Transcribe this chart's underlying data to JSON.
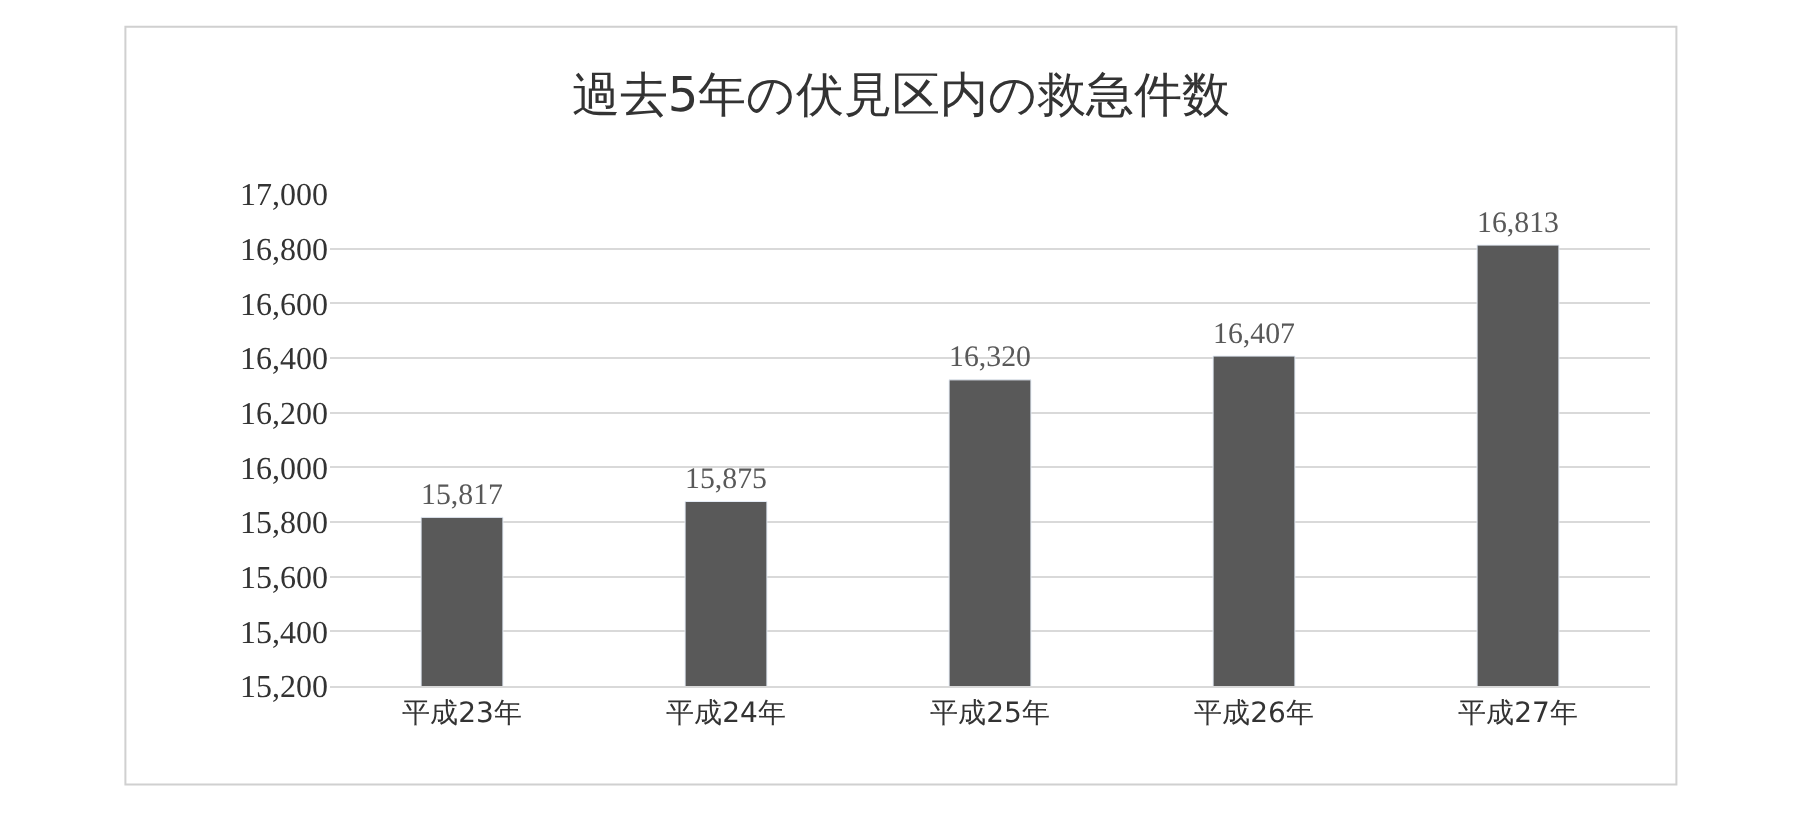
{
  "chart_data": {
    "type": "bar",
    "title": "過去5年の伏見区内の救急件数",
    "categories": [
      "平成23年",
      "平成24年",
      "平成25年",
      "平成26年",
      "平成27年"
    ],
    "values": [
      15817,
      15875,
      16320,
      16407,
      16813
    ],
    "color": "#595959",
    "ylim": [
      15200,
      17000
    ],
    "yticks": [
      {
        "value": 15200,
        "label": "15,200"
      },
      {
        "value": 15400,
        "label": "15,400"
      },
      {
        "value": 15600,
        "label": "15,600"
      },
      {
        "value": 15800,
        "label": "15,800"
      },
      {
        "value": 16000,
        "label": "16,000"
      },
      {
        "value": 16200,
        "label": "16,200"
      },
      {
        "value": 16400,
        "label": "16,400"
      },
      {
        "value": 16600,
        "label": "16,600"
      },
      {
        "value": 16800,
        "label": "16,800"
      },
      {
        "value": 17000,
        "label": "17,000"
      }
    ],
    "value_labels": [
      "15,817",
      "15,875",
      "16,320",
      "16,407",
      "16,813"
    ],
    "grid": "y",
    "legend": false
  }
}
